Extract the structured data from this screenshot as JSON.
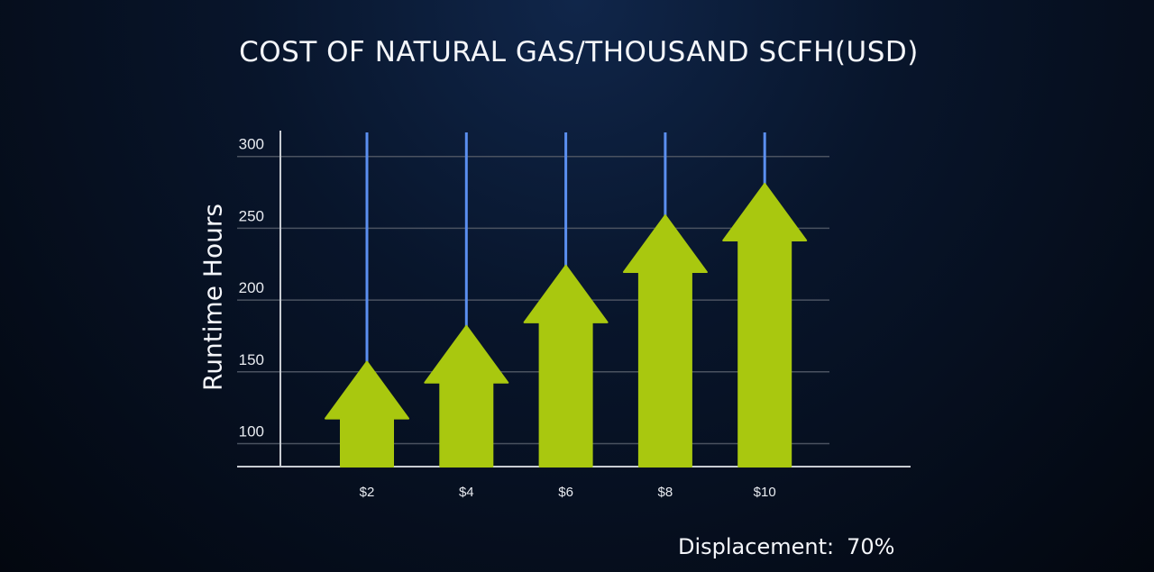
{
  "chart_data": {
    "type": "bar",
    "style": "arrows",
    "title": "COST OF NATURAL GAS/THOUSAND SCFH(USD)",
    "xlabel": "",
    "ylabel": "Runtime Hours",
    "categories": [
      "$2",
      "$4",
      "$6",
      "$8",
      "$10"
    ],
    "values": [
      157,
      182,
      224,
      259,
      281
    ],
    "yticks": [
      100,
      150,
      200,
      250,
      300
    ],
    "ylim": [
      84,
      318
    ],
    "grid": true,
    "colors": {
      "arrow": "#a9c80f",
      "stem": "#5b8ff0",
      "grid": "#4a5260",
      "axis": "#c8ccd2"
    }
  },
  "annotation": {
    "label": "Displacement:",
    "value": "70%"
  }
}
